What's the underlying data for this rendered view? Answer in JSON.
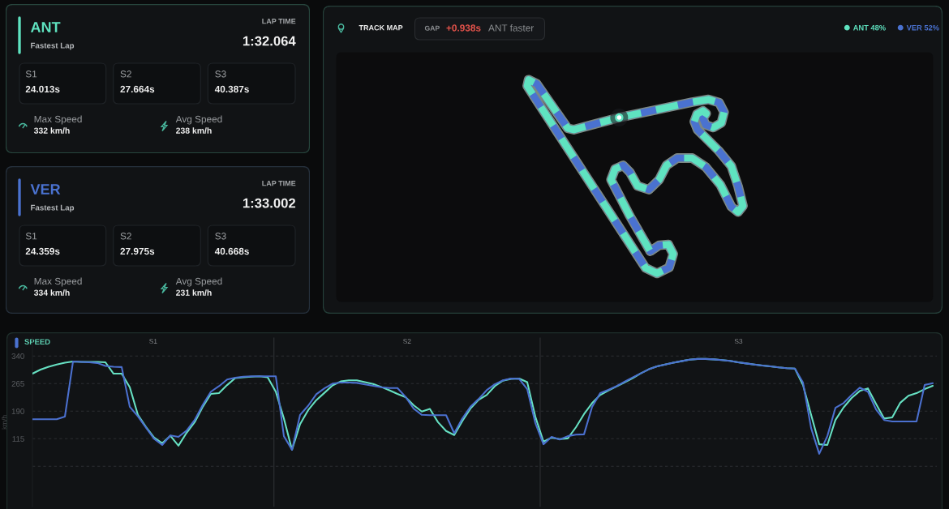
{
  "chart_data": [
    {
      "type": "other",
      "title": "ANT",
      "subtitle": "Fastest Lap",
      "annotations": [
        "LAP TIME",
        "1:32.064",
        "S1",
        "24.013s",
        "S2",
        "27.664s",
        "S3",
        "40.387s",
        "Max Speed",
        "332 km/h",
        "Avg Speed",
        "238 km/h"
      ]
    },
    {
      "type": "other",
      "title": "TRACK MAP",
      "annotations": [
        "GAP",
        "+0.938s",
        "ANT faster"
      ],
      "series": [
        {
          "name": "ANT 48%",
          "color": "#5fe3c0"
        },
        {
          "name": "VER 52%",
          "color": "#4a72d0"
        }
      ],
      "legend": "top right"
    },
    {
      "type": "other",
      "title": "VER",
      "subtitle": "Fastest Lap",
      "annotations": [
        "LAP TIME",
        "1:33.002",
        "S1",
        "24.359s",
        "S2",
        "27.975s",
        "S3",
        "40.668s",
        "Max Speed",
        "334 km/h",
        "Avg Speed",
        "231 km/h"
      ]
    },
    {
      "type": "line",
      "title": "SPEED",
      "ylabel": "km/h",
      "categories": [
        null,
        null,
        null,
        null,
        null,
        null,
        null,
        null,
        null,
        null,
        null,
        null,
        null,
        null,
        null,
        null,
        null,
        null,
        null,
        null,
        null,
        null,
        null,
        null,
        null,
        null,
        null,
        null,
        null,
        null,
        null,
        null,
        null,
        null,
        null,
        null,
        null,
        null,
        null,
        null,
        null,
        null,
        null,
        null,
        null,
        null,
        null,
        null,
        null,
        null,
        null,
        null,
        null,
        null,
        null,
        null,
        null,
        null,
        null,
        null,
        null,
        null,
        null,
        null,
        null,
        null,
        null,
        null,
        null,
        null,
        null,
        null,
        null,
        null,
        null,
        null,
        null,
        null,
        null,
        null,
        null,
        null,
        null,
        null,
        null,
        null,
        null,
        null,
        null,
        null,
        null,
        null,
        null,
        null,
        null,
        null,
        null,
        null,
        null,
        null,
        null,
        null,
        null,
        null,
        null,
        null,
        null,
        null,
        null,
        null,
        null,
        null
      ],
      "series": [
        {
          "color": "#66e0c2",
          "values": [
            292,
            303,
            311,
            317,
            322,
            325,
            324,
            324,
            324,
            323,
            292,
            292,
            255,
            180,
            147,
            118,
            103,
            123,
            96,
            131,
            160,
            202,
            237,
            239,
            261,
            280,
            282,
            284,
            285,
            282,
            243,
            170,
            85,
            155,
            193,
            220,
            240,
            260,
            271,
            274,
            274,
            269,
            264,
            256,
            247,
            237,
            228,
            206,
            189,
            196,
            160,
            136,
            125,
            163,
            197,
            221,
            234,
            258,
            273,
            278,
            279,
            269,
            175,
            107,
            118,
            114,
            116,
            146,
            182,
            212,
            234,
            246,
            257,
            268,
            280,
            293,
            304,
            312,
            317,
            322,
            326,
            330,
            332,
            332,
            331,
            329,
            327,
            323,
            320,
            317,
            314,
            312,
            309,
            307,
            306,
            261,
            180,
            100,
            98,
            166,
            200,
            226,
            245,
            252,
            210,
            170,
            173,
            213,
            232,
            239,
            250,
            259
          ]
        },
        {
          "color": "#4b70cf",
          "values": [
            168,
            168,
            168,
            168,
            175,
            325,
            324,
            323,
            321,
            313,
            311,
            310,
            202,
            176,
            145,
            115,
            98,
            124,
            120,
            137,
            166,
            207,
            243,
            258,
            276,
            281,
            284,
            285,
            285,
            285,
            285,
            122,
            85,
            180,
            205,
            236,
            252,
            265,
            268,
            268,
            267,
            263,
            259,
            255,
            253,
            253,
            229,
            197,
            180,
            179,
            179,
            179,
            130,
            170,
            202,
            223,
            247,
            263,
            274,
            279,
            278,
            250,
            158,
            100,
            120,
            113,
            122,
            126,
            127,
            202,
            239,
            248,
            258,
            270,
            282,
            293,
            304,
            312,
            317,
            322,
            326,
            330,
            332,
            332,
            331,
            329,
            327,
            323,
            320,
            317,
            314,
            312,
            309,
            307,
            306,
            268,
            144,
            74,
            122,
            199,
            212,
            234,
            254,
            243,
            195,
            166,
            162,
            162,
            162,
            162,
            261,
            266
          ]
        }
      ],
      "ylim": [
        -70,
        390
      ],
      "yticks": [
        {
          "value": 40,
          "label": null
        },
        115,
        190,
        265,
        340
      ],
      "grid": "y",
      "annotations": [
        "S1",
        "S2",
        "S3"
      ],
      "marker": "none",
      "line_style": "solid",
      "legend": false
    }
  ]
}
